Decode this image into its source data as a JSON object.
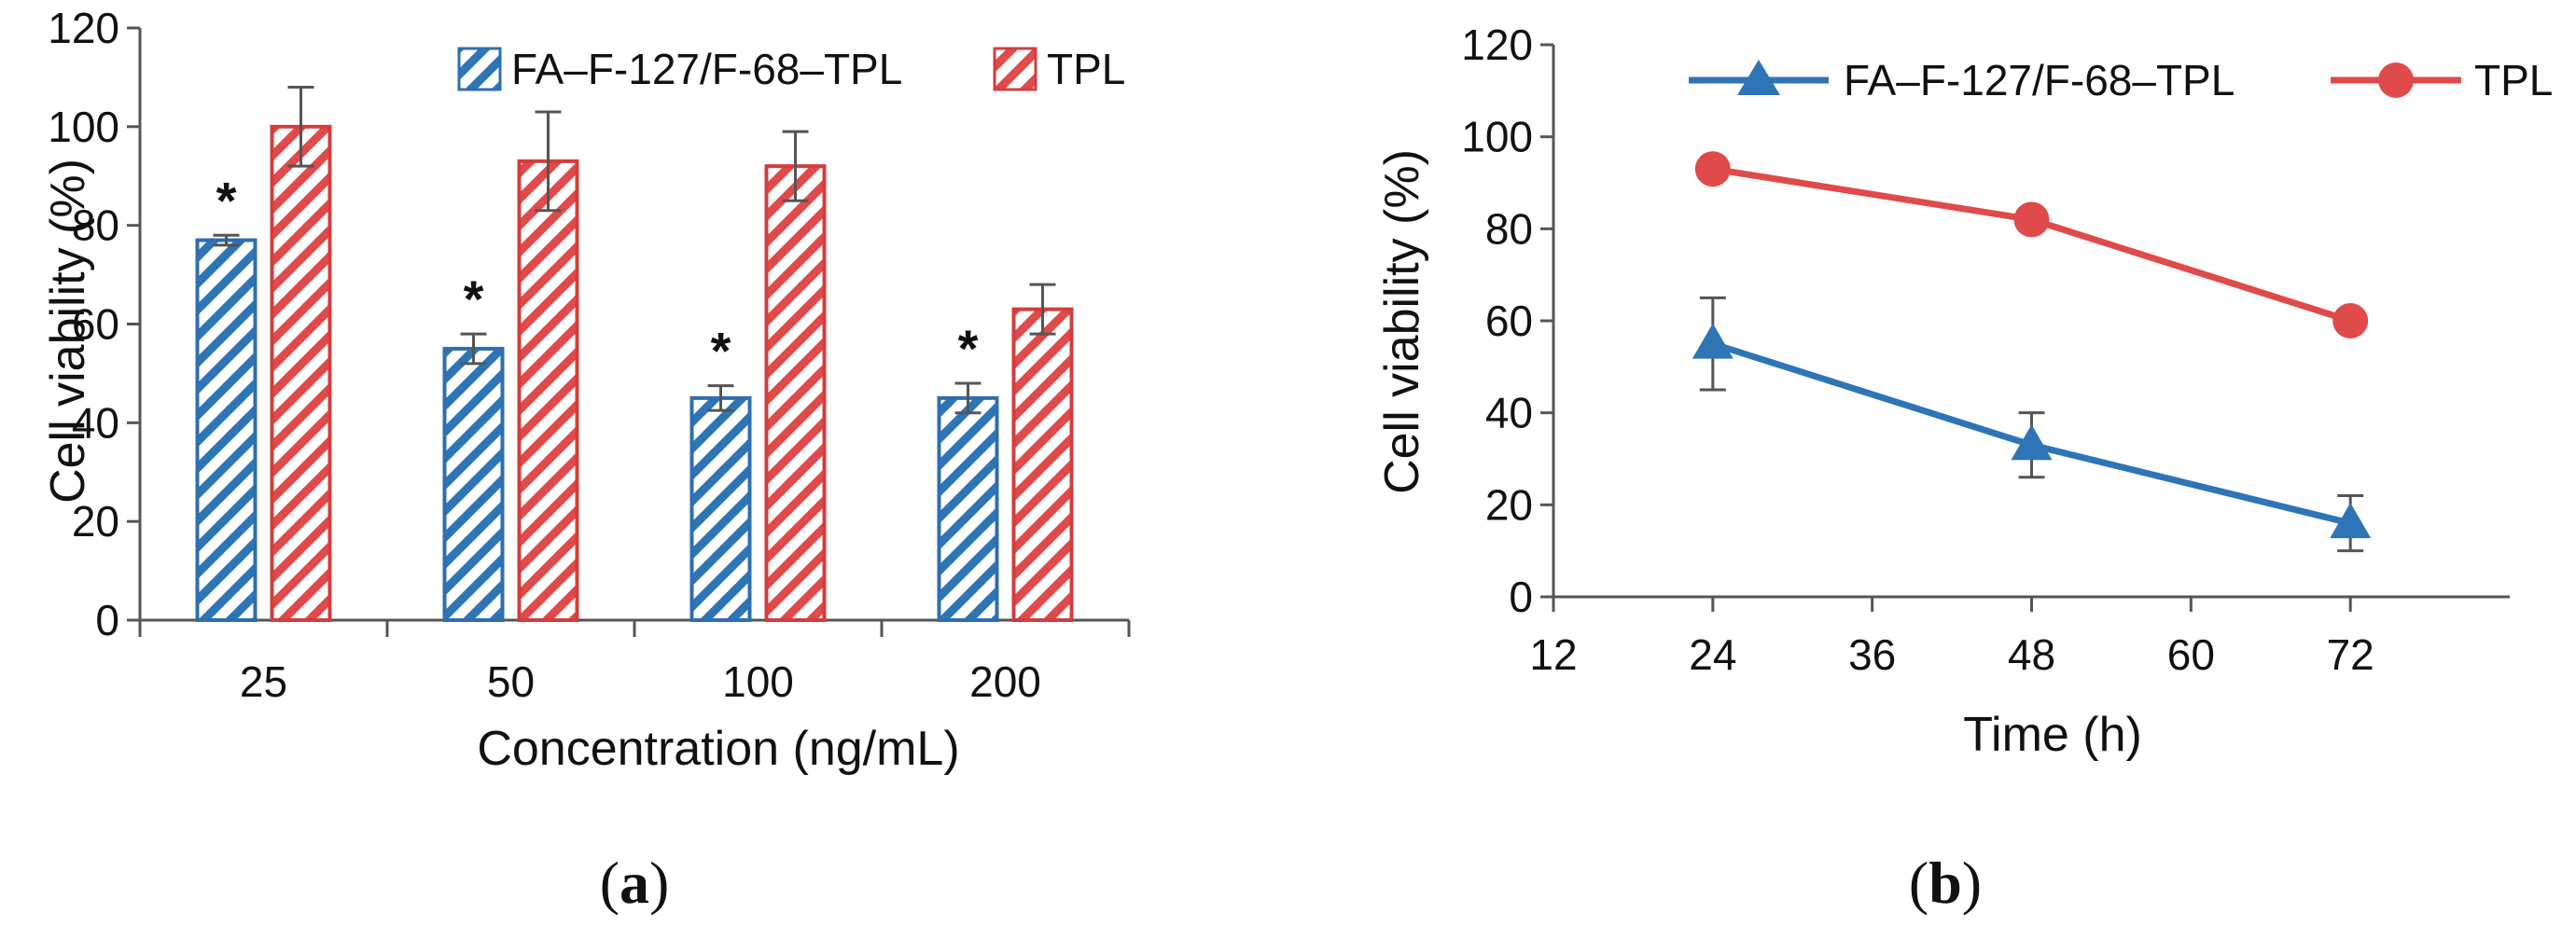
{
  "colors": {
    "blue": "#2e75b6",
    "blue_stroke": "#2f6eb0",
    "red": "#e04a4a",
    "red_stroke": "#d33d3d",
    "axis": "#555555",
    "error": "#555555"
  },
  "chart_data": [
    {
      "type": "bar",
      "panel": {
        "open": "(",
        "letter": "a",
        "close": ")"
      },
      "categories": [
        "25",
        "50",
        "100",
        "200"
      ],
      "series": [
        {
          "name": "FA–F-127/F-68–TPL",
          "values": [
            77,
            55,
            45,
            45
          ],
          "errors": [
            1,
            3,
            2.5,
            3
          ],
          "pattern": "hatched"
        },
        {
          "name": "TPL",
          "values": [
            100,
            93,
            92,
            63
          ],
          "errors": [
            8,
            10,
            7,
            5
          ],
          "pattern": "hatched"
        }
      ],
      "annotations": [
        "*",
        "*",
        "*",
        "*"
      ],
      "xlabel": "Concentration (ng/mL)",
      "ylabel": "Cell viability (%)",
      "ylim": [
        0,
        120
      ],
      "yticks": [
        "0",
        "20",
        "40",
        "60",
        "80",
        "100",
        "120"
      ],
      "grid": false,
      "legend_position": "top"
    },
    {
      "type": "line",
      "panel": {
        "open": "(",
        "letter": "b",
        "close": ")"
      },
      "x": [
        24,
        48,
        72
      ],
      "series": [
        {
          "name": "FA–F-127/F-68–TPL",
          "values": [
            55,
            33,
            16
          ],
          "errors": [
            10,
            7,
            6
          ],
          "marker": "triangle"
        },
        {
          "name": "TPL",
          "values": [
            93,
            82,
            60
          ],
          "errors": [
            2,
            1.5,
            1.5
          ],
          "marker": "circle"
        }
      ],
      "xlabel": "Time (h)",
      "ylabel": "Cell viability (%)",
      "xlim": [
        12,
        84
      ],
      "xticks": [
        "12",
        "24",
        "36",
        "48",
        "60",
        "72"
      ],
      "ylim": [
        0,
        120
      ],
      "yticks": [
        "0",
        "20",
        "40",
        "60",
        "80",
        "100",
        "120"
      ],
      "grid": false,
      "legend_position": "top"
    }
  ]
}
